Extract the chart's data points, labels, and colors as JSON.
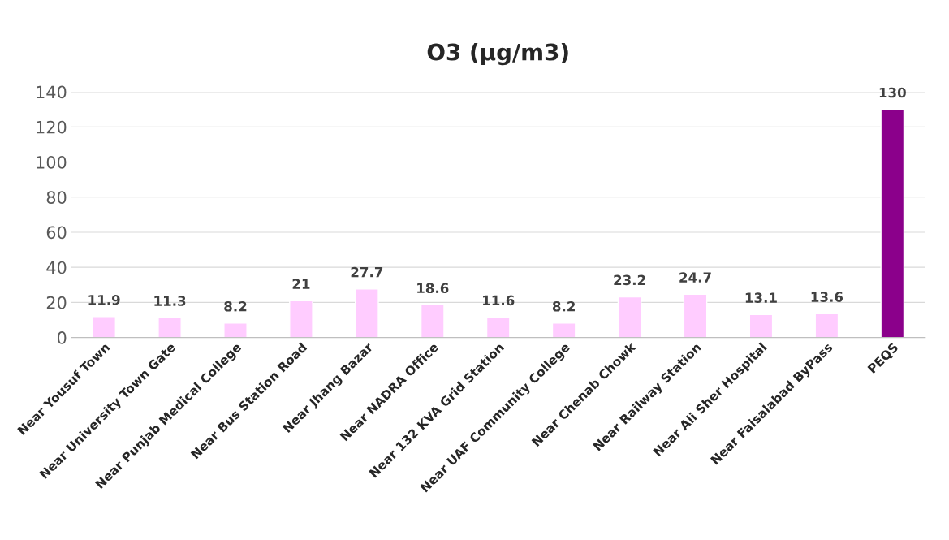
{
  "chart_data": {
    "type": "bar",
    "title": "O3 (µg/m3)",
    "categories": [
      "Near Yousuf Town",
      "Near University Town Gate",
      "Near Punjab Medical College",
      "Near Bus Station Road",
      "Near Jhang Bazar",
      "Near NADRA Office",
      "Near 132 KVA Grid Station",
      "Near UAF Community College",
      "Near Chenab Chowk",
      "Near Railway Station",
      "Near Ali Sher Hospital",
      "Near Faisalabad ByPass",
      "PEQS"
    ],
    "values": [
      11.9,
      11.3,
      8.2,
      21,
      27.7,
      18.6,
      11.6,
      8.2,
      23.2,
      24.7,
      13.1,
      13.6,
      130
    ],
    "colors": [
      "#ffccff",
      "#ffccff",
      "#ffccff",
      "#ffccff",
      "#ffccff",
      "#ffccff",
      "#ffccff",
      "#ffccff",
      "#ffccff",
      "#ffccff",
      "#ffccff",
      "#ffccff",
      "#8b008b"
    ],
    "ylim": [
      0,
      140
    ],
    "yticks": [
      0,
      20,
      40,
      60,
      80,
      100,
      120,
      140
    ],
    "grid": "y",
    "data_labels": true
  }
}
